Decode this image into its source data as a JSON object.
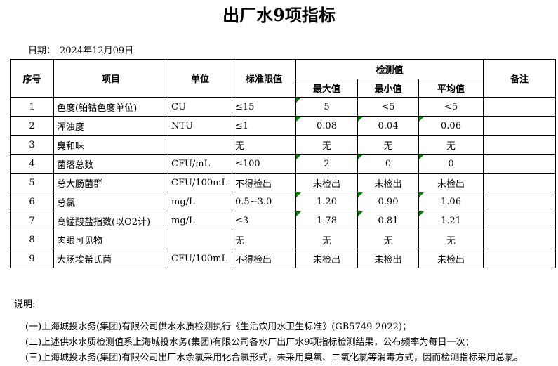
{
  "page": {
    "title": "出厂水9项指标",
    "date_label": "日期：",
    "date_value": "2024年12月09日"
  },
  "table": {
    "headers": {
      "index": "序号",
      "item": "项目",
      "unit": "单位",
      "standard_limit": "标准限值",
      "detection": "检测值",
      "max": "最大值",
      "min": "最小值",
      "avg": "平均值",
      "remark": "备注"
    },
    "rows": [
      {
        "no": "1",
        "item": "色度(铂钴色度单位)",
        "unit": "CU",
        "limit": "≤15",
        "max": "5",
        "min": "<5",
        "avg": "<5",
        "remark": "",
        "flags": [
          "max"
        ]
      },
      {
        "no": "2",
        "item": "浑浊度",
        "unit": "NTU",
        "limit": "≤1",
        "max": "0.08",
        "min": "0.04",
        "avg": "0.06",
        "remark": "",
        "flags": [
          "max",
          "min",
          "avg"
        ]
      },
      {
        "no": "3",
        "item": "臭和味",
        "unit": "",
        "limit": "无",
        "max": "无",
        "min": "无",
        "avg": "无",
        "remark": "",
        "flags": []
      },
      {
        "no": "4",
        "item": "菌落总数",
        "unit": "CFU/mL",
        "limit": "≤100",
        "max": "2",
        "min": "0",
        "avg": "0",
        "remark": "",
        "flags": [
          "max",
          "min",
          "avg"
        ]
      },
      {
        "no": "5",
        "item": "总大肠菌群",
        "unit": "CFU/100mL",
        "limit": "不得检出",
        "max": "未检出",
        "min": "未检出",
        "avg": "未检出",
        "remark": "",
        "flags": []
      },
      {
        "no": "6",
        "item": "总氯",
        "unit": "mg/L",
        "limit": "0.5~3.0",
        "max": "1.20",
        "min": "0.90",
        "avg": "1.06",
        "remark": "",
        "flags": [
          "max",
          "min",
          "avg"
        ]
      },
      {
        "no": "7",
        "item": "高锰酸盐指数(以O2计)",
        "unit": "mg/L",
        "limit": "≤3",
        "max": "1.78",
        "min": "0.81",
        "avg": "1.21",
        "remark": "",
        "flags": [
          "max",
          "min",
          "avg"
        ]
      },
      {
        "no": "8",
        "item": "肉眼可见物",
        "unit": "",
        "limit": "无",
        "max": "无",
        "min": "无",
        "avg": "无",
        "remark": "",
        "flags": []
      },
      {
        "no": "9",
        "item": "大肠埃希氏菌",
        "unit": "CFU/100mL",
        "limit": "不得检出",
        "max": "未检出",
        "min": "未检出",
        "avg": "未检出",
        "remark": "",
        "flags": []
      }
    ]
  },
  "notes": {
    "label": "说明:",
    "items": [
      "(一)上海城投水务(集团)有限公司供水水质检测执行《生活饮用水卫生标准》(GB5749-2022)；",
      "(二)上述供水水质检测值系上海城投水务(集团)有限公司各水厂出厂水9项指标检测结果，公布频率为每日一次；",
      "(三)上海城投水务(集团)有限公司出厂水余氯采用化合氯形式，未采用臭氧、二氧化氯等消毒方式，因而检测指标采用总氯。"
    ]
  },
  "colors": {
    "flag_green": "#008000",
    "border": "#000000"
  }
}
